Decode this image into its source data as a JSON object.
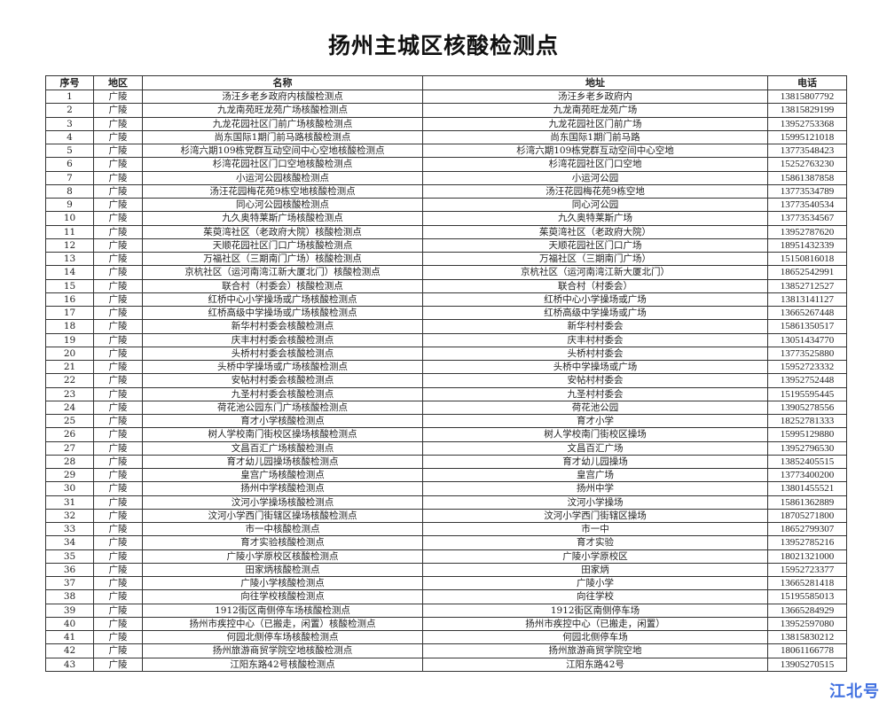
{
  "title": "扬州主城区核酸检测点",
  "headers": {
    "no": "序号",
    "district": "地区",
    "name": "名称",
    "address": "地址",
    "phone": "电话"
  },
  "rows": [
    {
      "no": "1",
      "district": "广陵",
      "name": "汤汪乡老乡政府内核酸检测点",
      "address": "汤汪乡老乡政府内",
      "phone": "13815807792"
    },
    {
      "no": "2",
      "district": "广陵",
      "name": "九龙南苑旺龙苑广场核酸检测点",
      "address": "九龙南苑旺龙苑广场",
      "phone": "13815829199"
    },
    {
      "no": "3",
      "district": "广陵",
      "name": "九龙花园社区门前广场核酸检测点",
      "address": "九龙花园社区门前广场",
      "phone": "13952753368"
    },
    {
      "no": "4",
      "district": "广陵",
      "name": "尚东国际1期门前马路核酸检测点",
      "address": "尚东国际1期门前马路",
      "phone": "15995121018"
    },
    {
      "no": "5",
      "district": "广陵",
      "name": "杉湾六期109栋党群互动空间中心空地核酸检测点",
      "address": "杉湾六期109栋党群互动空间中心空地",
      "phone": "13773548423"
    },
    {
      "no": "6",
      "district": "广陵",
      "name": "杉湾花园社区门口空地核酸检测点",
      "address": "杉湾花园社区门口空地",
      "phone": "15252763230"
    },
    {
      "no": "7",
      "district": "广陵",
      "name": "小运河公园核酸检测点",
      "address": "小运河公园",
      "phone": "15861387858"
    },
    {
      "no": "8",
      "district": "广陵",
      "name": "汤汪花园梅花苑9栋空地核酸检测点",
      "address": "汤汪花园梅花苑9栋空地",
      "phone": "13773534789"
    },
    {
      "no": "9",
      "district": "广陵",
      "name": "同心河公园核酸检测点",
      "address": "同心河公园",
      "phone": "13773540534"
    },
    {
      "no": "10",
      "district": "广陵",
      "name": "九久奥特莱斯广场核酸检测点",
      "address": "九久奥特莱斯广场",
      "phone": "13773534567"
    },
    {
      "no": "11",
      "district": "广陵",
      "name": "茱萸湾社区（老政府大院）核酸检测点",
      "address": "茱萸湾社区（老政府大院）",
      "phone": "13952787620"
    },
    {
      "no": "12",
      "district": "广陵",
      "name": "天顺花园社区门口广场核酸检测点",
      "address": "天顺花园社区门口广场",
      "phone": "18951432339"
    },
    {
      "no": "13",
      "district": "广陵",
      "name": "万福社区（三期南门广场）核酸检测点",
      "address": "万福社区（三期南门广场）",
      "phone": "15150816018"
    },
    {
      "no": "14",
      "district": "广陵",
      "name": "京杭社区（运河南湾江新大厦北门）核酸检测点",
      "address": "京杭社区（运河南湾江新大厦北门）",
      "phone": "18652542991"
    },
    {
      "no": "15",
      "district": "广陵",
      "name": "联合村（村委会）核酸检测点",
      "address": "联合村（村委会）",
      "phone": "13852712527"
    },
    {
      "no": "16",
      "district": "广陵",
      "name": "红桥中心小学操场或广场核酸检测点",
      "address": "红桥中心小学操场或广场",
      "phone": "13813141127"
    },
    {
      "no": "17",
      "district": "广陵",
      "name": "红桥高级中学操场或广场核酸检测点",
      "address": "红桥高级中学操场或广场",
      "phone": "13665267448"
    },
    {
      "no": "18",
      "district": "广陵",
      "name": "新华村村委会核酸检测点",
      "address": "新华村村委会",
      "phone": "15861350517"
    },
    {
      "no": "19",
      "district": "广陵",
      "name": "庆丰村村委会核酸检测点",
      "address": "庆丰村村委会",
      "phone": "13051434770"
    },
    {
      "no": "20",
      "district": "广陵",
      "name": "头桥村村委会核酸检测点",
      "address": "头桥村村委会",
      "phone": "13773525880"
    },
    {
      "no": "21",
      "district": "广陵",
      "name": "头桥中学操场或广场核酸检测点",
      "address": "头桥中学操场或广场",
      "phone": "15952723332"
    },
    {
      "no": "22",
      "district": "广陵",
      "name": "安帖村村委会核酸检测点",
      "address": "安帖村村委会",
      "phone": "13952752448"
    },
    {
      "no": "23",
      "district": "广陵",
      "name": "九圣村村委会核酸检测点",
      "address": "九圣村村委会",
      "phone": "15195595445"
    },
    {
      "no": "24",
      "district": "广陵",
      "name": "荷花池公园东门广场核酸检测点",
      "address": "荷花池公园",
      "phone": "13905278556"
    },
    {
      "no": "25",
      "district": "广陵",
      "name": "育才小学核酸检测点",
      "address": "育才小学",
      "phone": "18252781333"
    },
    {
      "no": "26",
      "district": "广陵",
      "name": "树人学校南门街校区操场核酸检测点",
      "address": "树人学校南门街校区操场",
      "phone": "15995129880"
    },
    {
      "no": "27",
      "district": "广陵",
      "name": "文昌百汇广场核酸检测点",
      "address": "文昌百汇广场",
      "phone": "13952796530"
    },
    {
      "no": "28",
      "district": "广陵",
      "name": "育才幼儿园操场核酸检测点",
      "address": "育才幼儿园操场",
      "phone": "13852405515"
    },
    {
      "no": "29",
      "district": "广陵",
      "name": "皇宫广场核酸检测点",
      "address": "皇宫广场",
      "phone": "13773400200"
    },
    {
      "no": "30",
      "district": "广陵",
      "name": "扬州中学核酸检测点",
      "address": "扬州中学",
      "phone": "13801455521"
    },
    {
      "no": "31",
      "district": "广陵",
      "name": "汶河小学操场核酸检测点",
      "address": "汶河小学操场",
      "phone": "15861362889"
    },
    {
      "no": "32",
      "district": "广陵",
      "name": "汶河小学西门街辖区操场核酸检测点",
      "address": "汶河小学西门街辖区操场",
      "phone": "18705271800"
    },
    {
      "no": "33",
      "district": "广陵",
      "name": "市一中核酸检测点",
      "address": "市一中",
      "phone": "18652799307"
    },
    {
      "no": "34",
      "district": "广陵",
      "name": "育才实验核酸检测点",
      "address": "育才实验",
      "phone": "13952785216"
    },
    {
      "no": "35",
      "district": "广陵",
      "name": "广陵小学原校区核酸检测点",
      "address": "广陵小学原校区",
      "phone": "18021321000"
    },
    {
      "no": "36",
      "district": "广陵",
      "name": "田家炳核酸检测点",
      "address": "田家炳",
      "phone": "15952723377"
    },
    {
      "no": "37",
      "district": "广陵",
      "name": "广陵小学核酸检测点",
      "address": "广陵小学",
      "phone": "13665281418"
    },
    {
      "no": "38",
      "district": "广陵",
      "name": "向往学校核酸检测点",
      "address": "向往学校",
      "phone": "15195585013"
    },
    {
      "no": "39",
      "district": "广陵",
      "name": "1912街区南侧停车场核酸检测点",
      "address": "1912街区南侧停车场",
      "phone": "13665284929"
    },
    {
      "no": "40",
      "district": "广陵",
      "name": "扬州市疾控中心（已搬走，闲置）核酸检测点",
      "address": "扬州市疾控中心（已搬走，闲置）",
      "phone": "13952597080"
    },
    {
      "no": "41",
      "district": "广陵",
      "name": "何园北侧停车场核酸检测点",
      "address": "何园北侧停车场",
      "phone": "13815830212"
    },
    {
      "no": "42",
      "district": "广陵",
      "name": "扬州旅游商贸学院空地核酸检测点",
      "address": "扬州旅游商贸学院空地",
      "phone": "18061166778"
    },
    {
      "no": "43",
      "district": "广陵",
      "name": "江阳东路42号核酸检测点",
      "address": "江阳东路42号",
      "phone": "13905270515"
    }
  ],
  "watermark": "江北号",
  "colors": {
    "watermark": "#3f6fe0",
    "border": "#333333"
  }
}
